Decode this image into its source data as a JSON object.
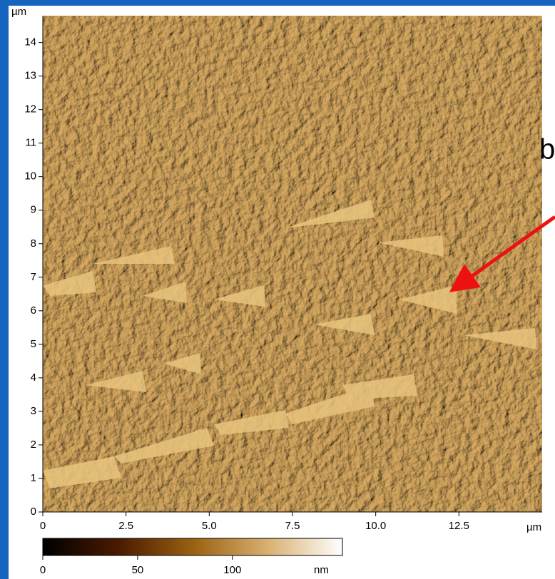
{
  "chart_data": {
    "type": "image",
    "xlim": [
      0,
      15
    ],
    "ylim": [
      0,
      14.8
    ],
    "xticks": [
      0,
      2.5,
      {
        "value": 5,
        "label": "5.0"
      },
      7.5,
      {
        "value": 10,
        "label": "10.0"
      },
      12.5
    ],
    "yticks": [
      0,
      1,
      2,
      3,
      4,
      5,
      6,
      7,
      8,
      9,
      10,
      11,
      12,
      13,
      14
    ],
    "x_unit": "µm",
    "y_unit": "µm",
    "colorbar": {
      "clim": [
        0,
        158
      ],
      "ticks": [
        0,
        50,
        100
      ],
      "unit": "nm",
      "colors": [
        "#000000",
        "#4a1a00",
        "#9a6010",
        "#d8b070",
        "#ffffff"
      ]
    },
    "annotation": "b",
    "annotation_color": "#ee1111"
  }
}
